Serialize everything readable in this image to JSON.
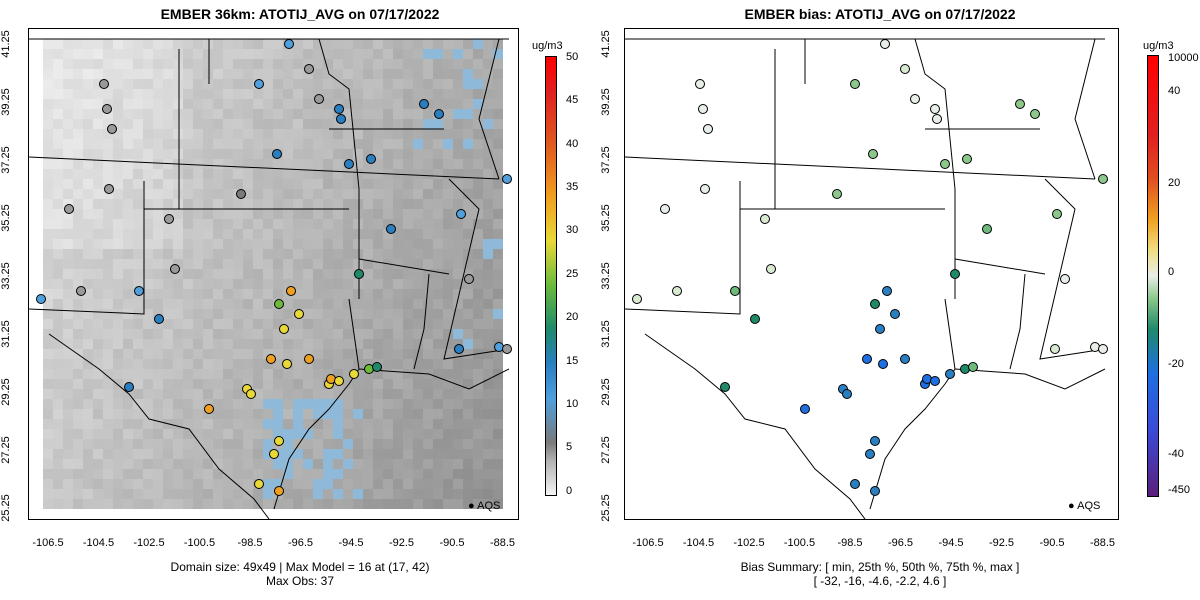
{
  "left_panel": {
    "title": "EMBER 36km: ATOTIJ_AVG on 07/17/2022",
    "caption_line1": "Domain size: 49x49 | Max Model = 16 at (17, 42)",
    "caption_line2": "Max Obs: 37",
    "colorbar_unit": "ug/m3",
    "colorbar_ticks": [
      "50",
      "45",
      "40",
      "35",
      "30",
      "25",
      "20",
      "15",
      "10",
      "5",
      "0"
    ],
    "legend_label": "AQS"
  },
  "right_panel": {
    "title": "EMBER bias: ATOTIJ_AVG on 07/17/2022",
    "caption_line1": "Bias Summary: [ min, 25th %, 50th %, 75th %, max ]",
    "caption_line2": "[ -32,  -16,  -4.6,  -2.2,  4.6 ]",
    "colorbar_unit": "ug/m3",
    "colorbar_ticks": [
      "10000",
      "40",
      "20",
      "0",
      "-20",
      "-40",
      "-450"
    ],
    "legend_label": "AQS"
  },
  "x_ticks": [
    "-106.5",
    "-104.5",
    "-102.5",
    "-100.5",
    "-98.5",
    "-96.5",
    "-94.5",
    "-92.5",
    "-90.5",
    "-88.5"
  ],
  "y_ticks": [
    "41.25",
    "39.25",
    "37.25",
    "35.25",
    "33.25",
    "31.25",
    "29.25",
    "27.25",
    "25.25"
  ],
  "colors": {
    "conc_scale": [
      "#f5f5f5",
      "#b0b0b0",
      "#7a7a7a",
      "#4fa0dc",
      "#2a7fc0",
      "#1f8a6a",
      "#6cbb3c",
      "#e8d838",
      "#f0a020",
      "#e05a20",
      "#e02020",
      "#ff0000"
    ],
    "bias_scale": [
      "#5b1f7a",
      "#3a4bd8",
      "#1e6fe0",
      "#1f8a6a",
      "#8cc88c",
      "#e8eee8",
      "#f0dd80",
      "#f0a020",
      "#e05020",
      "#e02020",
      "#ff0000"
    ]
  }
}
